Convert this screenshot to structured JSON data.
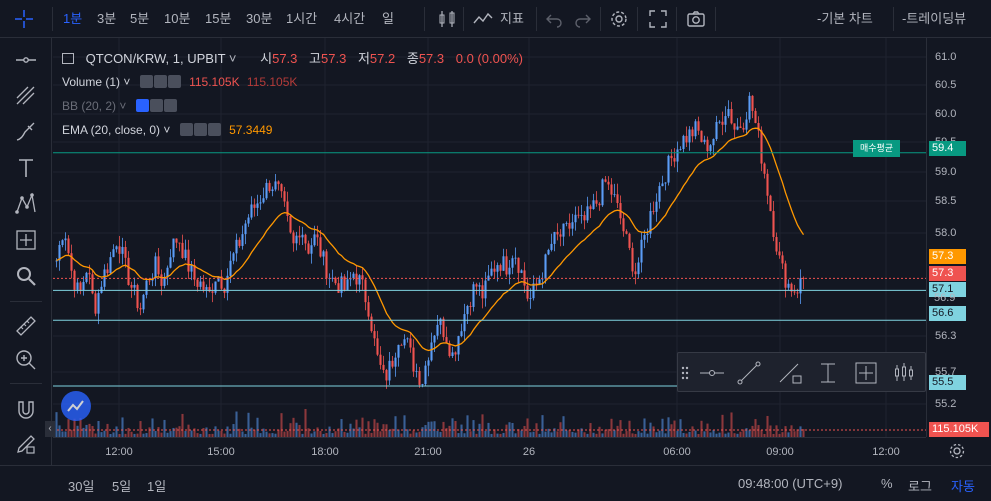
{
  "toolbar": {
    "intervals": [
      "1분",
      "3분",
      "5분",
      "10분",
      "15분",
      "30분",
      "1시간",
      "4시간",
      "일"
    ],
    "active_interval": "1분",
    "indicators_label": "지표",
    "basic_chart_label": "-기본 차트",
    "tradingview_label": "-트레이딩뷰"
  },
  "symbol": {
    "title": "QTCON/KRW, 1, UPBIT",
    "open_label": "시",
    "open": "57.3",
    "high_label": "고",
    "high": "57.3",
    "low_label": "저",
    "low": "57.2",
    "close_label": "종",
    "close": "57.3",
    "change": "0.0 (0.00%)"
  },
  "studies": {
    "volume_label": "Volume (1)",
    "volume_value_1": "115.105K",
    "volume_value_2": "115.105K",
    "bb_label": "BB (20, 2)",
    "ema_label": "EMA (20, close, 0)",
    "ema_value": "57.3449"
  },
  "avg_buy_label": "매수평균",
  "price_tags": {
    "avg_buy": "59.4",
    "ema": "57.3",
    "last": "57.3",
    "line_57_1": "57.1",
    "line_56_6": "56.6",
    "line_55_5": "55.5",
    "line_56_9": "56.9",
    "volume": "115.105K"
  },
  "price_axis": [
    "61.0",
    "60.5",
    "60.0",
    "59.5",
    "59.0",
    "58.5",
    "58.0",
    "56.3",
    "55.7",
    "55.2"
  ],
  "time_axis": [
    "12:00",
    "15:00",
    "18:00",
    "21:00",
    "26",
    "06:00",
    "09:00",
    "12:00"
  ],
  "bottom": {
    "ranges": [
      "30일",
      "5일",
      "1일"
    ],
    "clock": "09:48:00 (UTC+9)",
    "percent_label": "%",
    "log_label": "로그",
    "auto_label": "자동"
  },
  "colors": {
    "background": "#131722",
    "up": "#5b9cf6",
    "down": "#ef5350",
    "ema": "#ff9800",
    "avg_buy": "#089981",
    "hline": "#7fd3e0",
    "accent": "#2962ff"
  },
  "chart_data": {
    "type": "candlestick",
    "x_range": [
      "10:30",
      "12:30"
    ],
    "ylim": [
      55.0,
      61.2
    ],
    "close_path": [
      57.6,
      58.2,
      57.4,
      57.0,
      57.5,
      56.8,
      57.3,
      57.6,
      58.0,
      57.5,
      57.1,
      56.8,
      57.3,
      57.5,
      57.2,
      57.8,
      58.0,
      57.6,
      57.3,
      57.2,
      57.0,
      57.4,
      57.2,
      57.6,
      57.9,
      58.3,
      58.5,
      58.7,
      58.9,
      58.8,
      58.4,
      57.8,
      58.2,
      57.8,
      58.0,
      57.6,
      57.3,
      57.2,
      57.1,
      57.4,
      57.2,
      56.8,
      56.0,
      55.6,
      55.9,
      56.4,
      56.2,
      55.8,
      55.6,
      56.2,
      56.6,
      56.4,
      56.0,
      56.5,
      56.9,
      57.2,
      57.0,
      57.4,
      57.6,
      57.5,
      57.8,
      57.4,
      56.9,
      57.2,
      57.5,
      57.9,
      58.0,
      58.1,
      58.3,
      58.2,
      58.4,
      58.6,
      58.9,
      58.7,
      58.3,
      57.8,
      57.4,
      57.9,
      58.4,
      58.8,
      59.1,
      59.4,
      59.6,
      59.7,
      59.8,
      59.5,
      59.6,
      59.9,
      60.2,
      59.8,
      59.9,
      60.3,
      59.7,
      59.0,
      58.2,
      57.5,
      57.2,
      57.1,
      57.3
    ],
    "ema_value": 57.3449,
    "horizontal_lines": [
      59.4,
      57.1,
      56.6,
      55.5
    ],
    "last_price": 57.3
  }
}
